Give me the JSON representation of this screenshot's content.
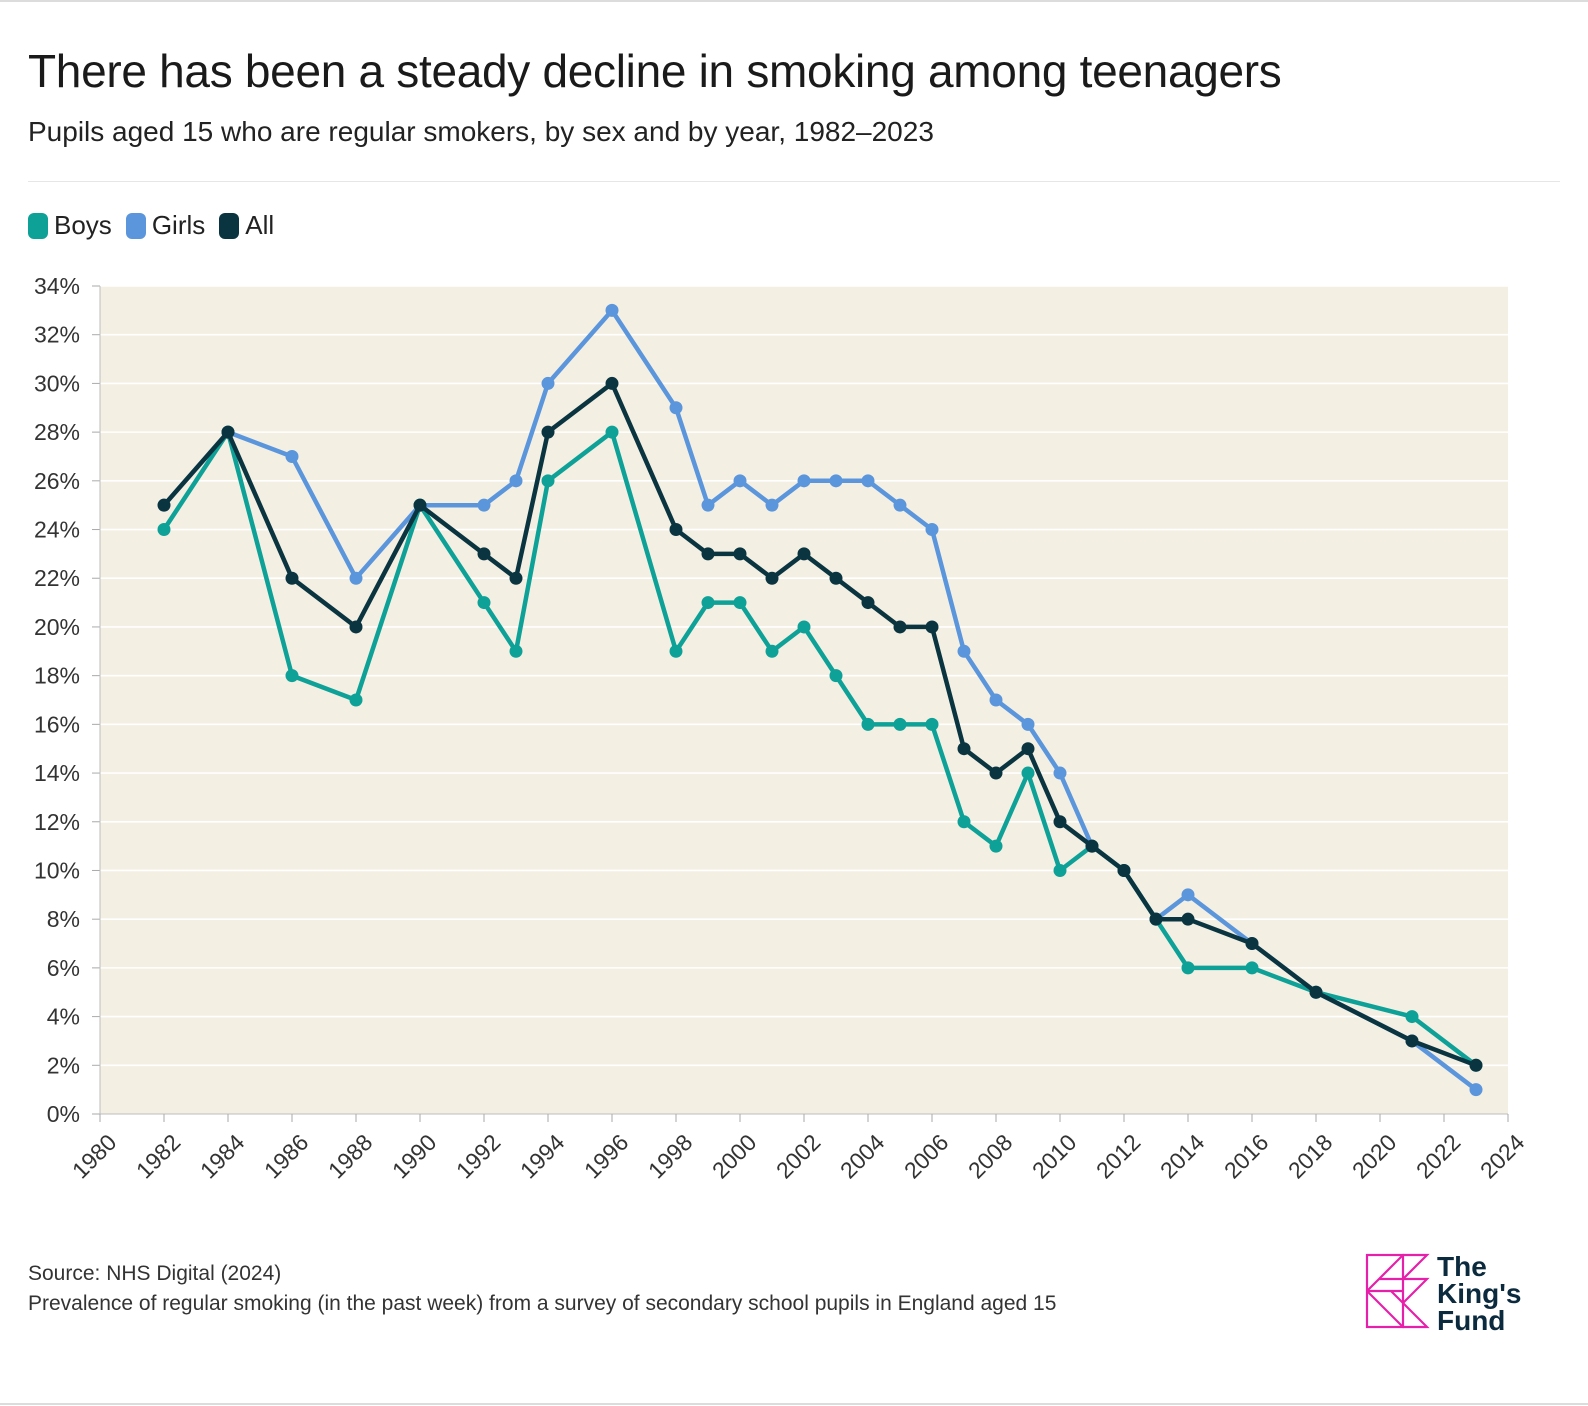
{
  "title": "There has been a steady decline in smoking among teenagers",
  "subtitle": "Pupils aged 15 who are regular smokers, by sex and by year, 1982–2023",
  "legend": [
    {
      "label": "Boys",
      "color": "#0ea198"
    },
    {
      "label": "Girls",
      "color": "#5b96dc"
    },
    {
      "label": "All",
      "color": "#0a3540"
    }
  ],
  "footer": {
    "source": "Source: NHS Digital (2024)",
    "note": "Prevalence of regular smoking (in the past week) from a survey of secondary school pupils in England aged 15"
  },
  "logo": {
    "line1": "The",
    "line2": "King's",
    "line3": "Fund"
  },
  "chart_data": {
    "type": "line",
    "title": "",
    "xlabel": "",
    "ylabel": "",
    "xlim": [
      1980,
      2024
    ],
    "ylim": [
      0,
      34
    ],
    "x_ticks": [
      1980,
      1982,
      1984,
      1986,
      1988,
      1990,
      1992,
      1994,
      1996,
      1998,
      2000,
      2002,
      2004,
      2006,
      2008,
      2010,
      2012,
      2014,
      2016,
      2018,
      2020,
      2022,
      2024
    ],
    "y_ticks": [
      0,
      2,
      4,
      6,
      8,
      10,
      12,
      14,
      16,
      18,
      20,
      22,
      24,
      26,
      28,
      30,
      32,
      34
    ],
    "y_tick_suffix": "%",
    "grid": true,
    "background": "#f4efe3",
    "legend_position": "top-left",
    "series": [
      {
        "name": "Girls",
        "color": "#5b96dc",
        "points": [
          [
            1982,
            25
          ],
          [
            1984,
            28
          ],
          [
            1986,
            27
          ],
          [
            1988,
            22
          ],
          [
            1990,
            25
          ],
          [
            1992,
            25
          ],
          [
            1993,
            26
          ],
          [
            1994,
            30
          ],
          [
            1996,
            33
          ],
          [
            1998,
            29
          ],
          [
            1999,
            25
          ],
          [
            2000,
            26
          ],
          [
            2001,
            25
          ],
          [
            2002,
            26
          ],
          [
            2003,
            26
          ],
          [
            2004,
            26
          ],
          [
            2005,
            25
          ],
          [
            2006,
            24
          ],
          [
            2007,
            19
          ],
          [
            2008,
            17
          ],
          [
            2009,
            16
          ],
          [
            2010,
            14
          ],
          [
            2011,
            11
          ],
          [
            2012,
            10
          ],
          [
            2013,
            8
          ],
          [
            2014,
            9
          ],
          [
            2016,
            7
          ],
          [
            2018,
            5
          ],
          [
            2021,
            3
          ],
          [
            2023,
            1
          ]
        ]
      },
      {
        "name": "Boys",
        "color": "#0ea198",
        "points": [
          [
            1982,
            24
          ],
          [
            1984,
            28
          ],
          [
            1986,
            18
          ],
          [
            1988,
            17
          ],
          [
            1990,
            25
          ],
          [
            1992,
            21
          ],
          [
            1993,
            19
          ],
          [
            1994,
            26
          ],
          [
            1996,
            28
          ],
          [
            1998,
            19
          ],
          [
            1999,
            21
          ],
          [
            2000,
            21
          ],
          [
            2001,
            19
          ],
          [
            2002,
            20
          ],
          [
            2003,
            18
          ],
          [
            2004,
            16
          ],
          [
            2005,
            16
          ],
          [
            2006,
            16
          ],
          [
            2007,
            12
          ],
          [
            2008,
            11
          ],
          [
            2009,
            14
          ],
          [
            2010,
            10
          ],
          [
            2011,
            11
          ],
          [
            2012,
            10
          ],
          [
            2013,
            8
          ],
          [
            2014,
            6
          ],
          [
            2016,
            6
          ],
          [
            2018,
            5
          ],
          [
            2021,
            4
          ],
          [
            2023,
            2
          ]
        ]
      },
      {
        "name": "All",
        "color": "#0a3540",
        "points": [
          [
            1982,
            25
          ],
          [
            1984,
            28
          ],
          [
            1986,
            22
          ],
          [
            1988,
            20
          ],
          [
            1990,
            25
          ],
          [
            1992,
            23
          ],
          [
            1993,
            22
          ],
          [
            1994,
            28
          ],
          [
            1996,
            30
          ],
          [
            1998,
            24
          ],
          [
            1999,
            23
          ],
          [
            2000,
            23
          ],
          [
            2001,
            22
          ],
          [
            2002,
            23
          ],
          [
            2003,
            22
          ],
          [
            2004,
            21
          ],
          [
            2005,
            20
          ],
          [
            2006,
            20
          ],
          [
            2007,
            15
          ],
          [
            2008,
            14
          ],
          [
            2009,
            15
          ],
          [
            2010,
            12
          ],
          [
            2011,
            11
          ],
          [
            2012,
            10
          ],
          [
            2013,
            8
          ],
          [
            2014,
            8
          ],
          [
            2016,
            7
          ],
          [
            2018,
            5
          ],
          [
            2021,
            3
          ],
          [
            2023,
            2
          ]
        ]
      }
    ]
  }
}
